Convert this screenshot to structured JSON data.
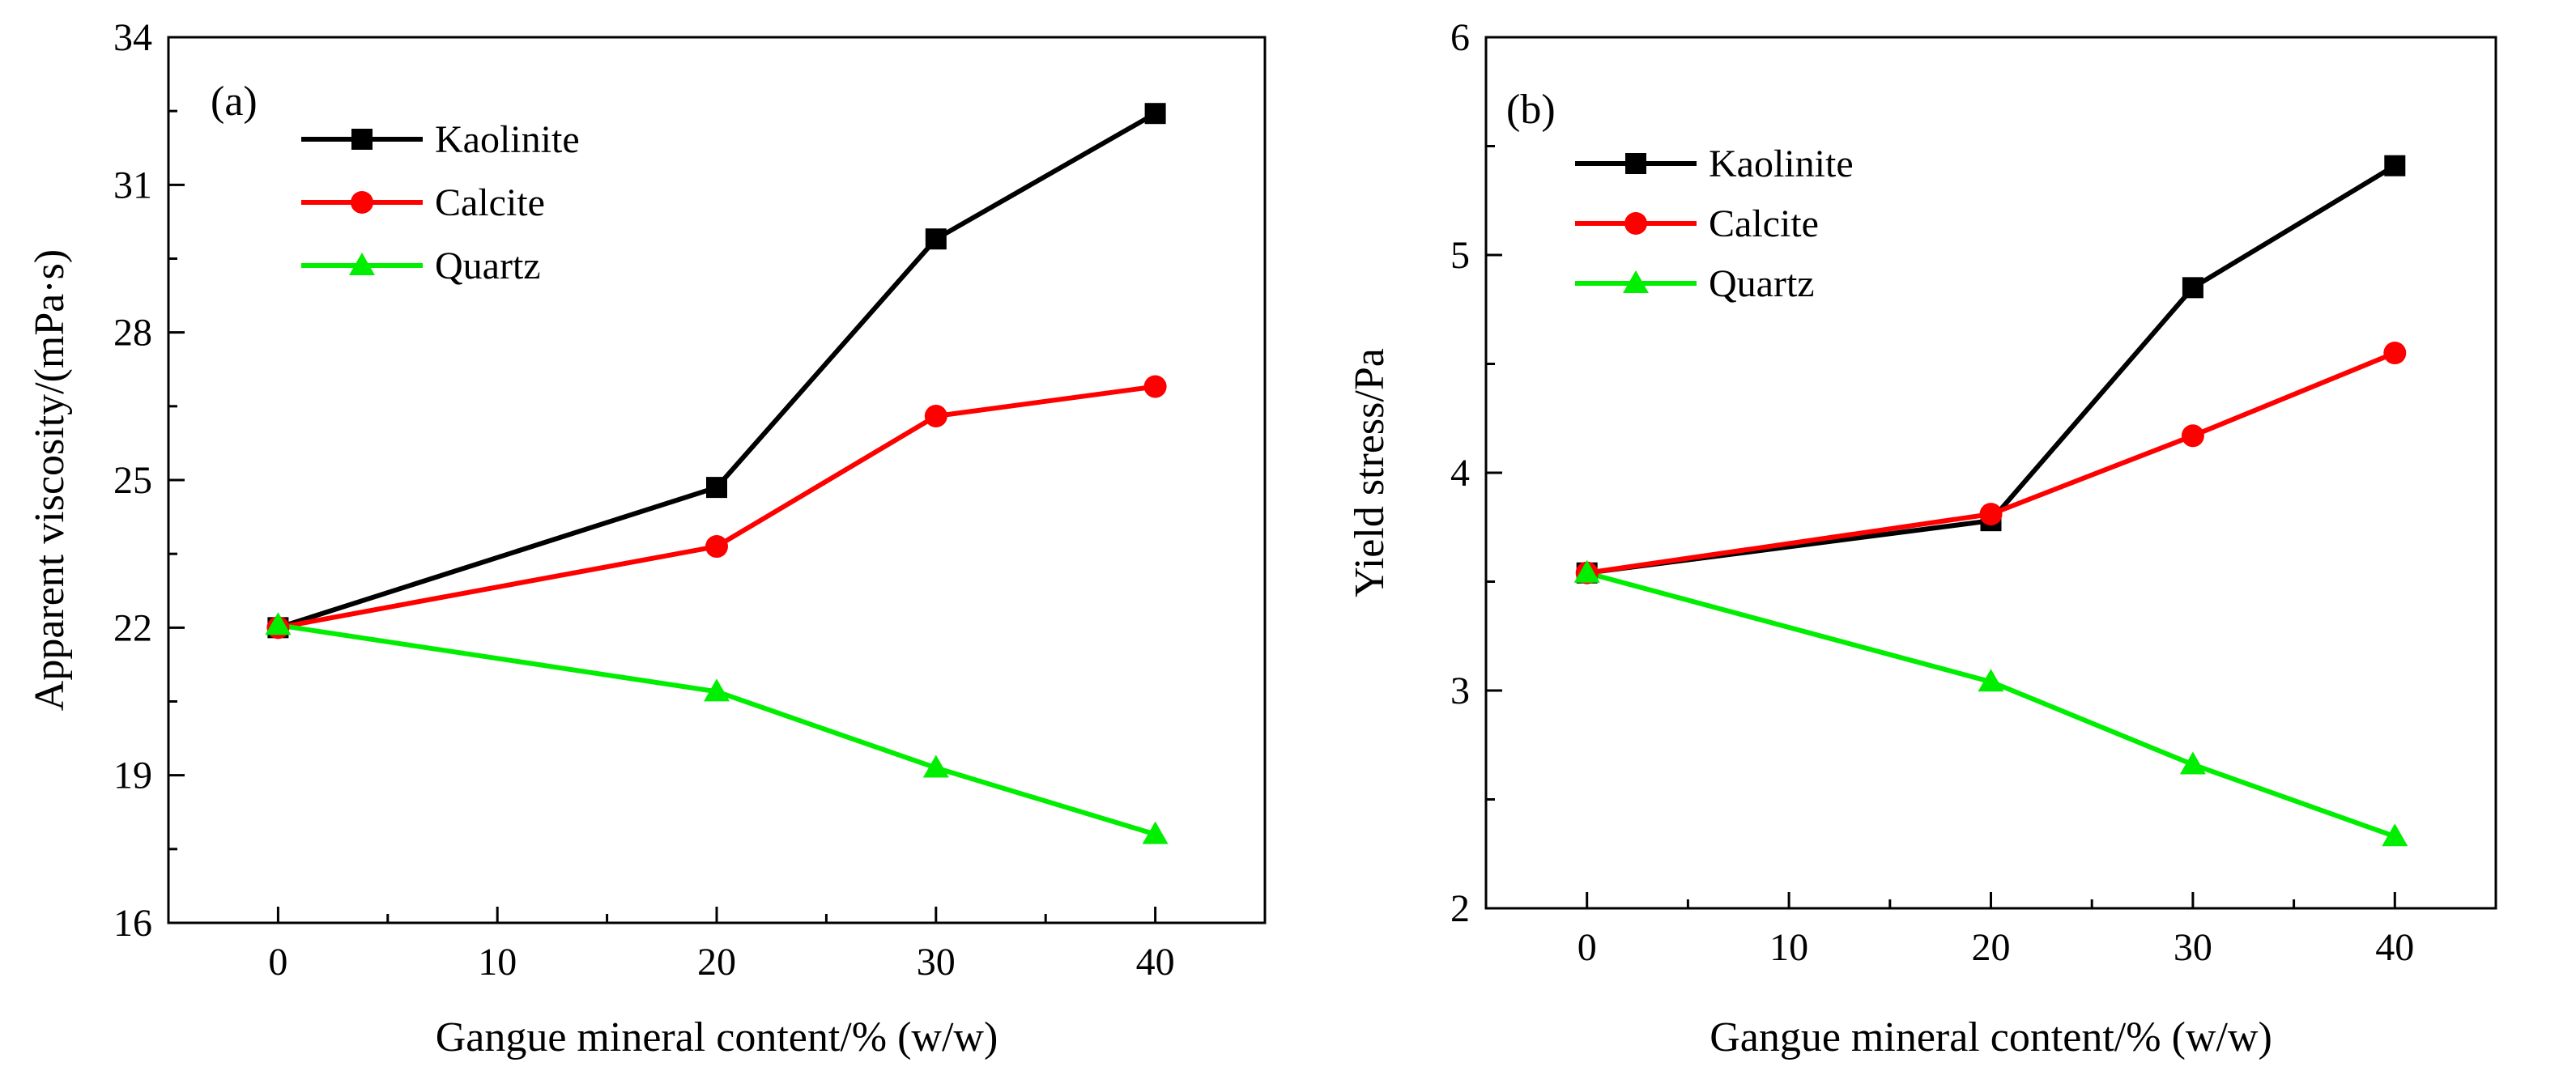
{
  "chart_data": [
    {
      "type": "line",
      "panel_label": "(a)",
      "xlabel": "Gangue mineral content/% (w/w)",
      "ylabel": "Apparent viscosity/(mPa·s)",
      "x": [
        0,
        20,
        30,
        40
      ],
      "xlim": [
        -5,
        45
      ],
      "ylim": [
        16,
        34
      ],
      "xticks": [
        0,
        10,
        20,
        30,
        40
      ],
      "yticks": [
        16,
        19,
        22,
        25,
        28,
        31,
        34
      ],
      "legend_position": "top-left",
      "grid": false,
      "series": [
        {
          "name": "Kaolinite",
          "color": "#000000",
          "marker": "square",
          "values": [
            22.0,
            24.85,
            29.9,
            32.45
          ]
        },
        {
          "name": "Calcite",
          "color": "#ff0000",
          "marker": "circle",
          "values": [
            22.0,
            23.65,
            26.3,
            26.9
          ]
        },
        {
          "name": "Quartz",
          "color": "#00ee00",
          "marker": "triangle",
          "values": [
            22.05,
            20.7,
            19.15,
            17.8
          ]
        }
      ]
    },
    {
      "type": "line",
      "panel_label": "(b)",
      "xlabel": "Gangue mineral content/% (w/w)",
      "ylabel": "Yield stress/Pa",
      "x": [
        0,
        20,
        30,
        40
      ],
      "xlim": [
        -5,
        45
      ],
      "ylim": [
        2,
        6
      ],
      "xticks": [
        0,
        10,
        20,
        30,
        40
      ],
      "yticks": [
        2,
        3,
        4,
        5,
        6
      ],
      "legend_position": "top-left",
      "grid": false,
      "series": [
        {
          "name": "Kaolinite",
          "color": "#000000",
          "marker": "square",
          "values": [
            3.54,
            3.78,
            4.85,
            5.41
          ]
        },
        {
          "name": "Calcite",
          "color": "#ff0000",
          "marker": "circle",
          "values": [
            3.54,
            3.81,
            4.17,
            4.55
          ]
        },
        {
          "name": "Quartz",
          "color": "#00ee00",
          "marker": "triangle",
          "values": [
            3.54,
            3.04,
            2.66,
            2.33
          ]
        }
      ]
    }
  ]
}
